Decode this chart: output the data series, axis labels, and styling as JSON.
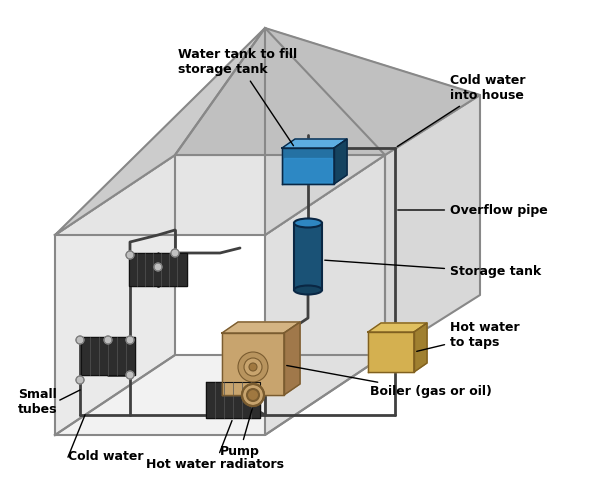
{
  "bg_color": "#ffffff",
  "house_line_color": "#888888",
  "pipe_color": "#404040",
  "radiator_color": "#2d2d2d",
  "storage_tank_color": "#1a5276",
  "water_tank_fill_color": "#2471a3",
  "boiler_body_color": "#d4b483",
  "hot_water_taps_color": "#d4b050",
  "labels": {
    "water_tank": "Water tank to fill\nstorage tank",
    "cold_water_house": "Cold water\ninto house",
    "overflow_pipe": "Overflow pipe",
    "storage_tank": "Storage tank",
    "hot_water_taps": "Hot water\nto taps",
    "boiler": "Boiler (gas or oil)",
    "pump": "Pump",
    "hot_water_radiators": "Hot water radiators",
    "cold_water": "Cold water",
    "small_tubes": "Small\ntubes"
  },
  "label_fontsize": 9,
  "label_fontweight": "bold",
  "label_color": "#000000"
}
